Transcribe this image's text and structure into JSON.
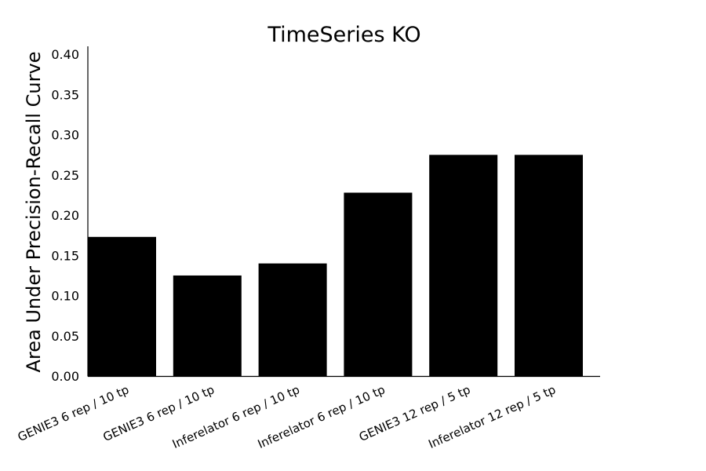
{
  "chart_data": {
    "type": "bar",
    "title": "TimeSeries KO",
    "xlabel": "",
    "ylabel": "Area Under Precision-Recall Curve",
    "categories": [
      "GENIE3 6 rep / 10 tp",
      "GENIE3 6 rep / 10 tp",
      "Inferelator 6 rep / 10 tp",
      "Inferelator 6 rep / 10 tp",
      "GENIE3 12 rep / 5 tp",
      "Inferelator 12 rep / 5 tp"
    ],
    "values": [
      0.173,
      0.125,
      0.14,
      0.228,
      0.275,
      0.275
    ],
    "ylim": [
      0,
      0.41
    ],
    "yticks": [
      "0.00",
      "0.05",
      "0.10",
      "0.15",
      "0.20",
      "0.25",
      "0.30",
      "0.35",
      "0.40"
    ],
    "grid": false,
    "bar_color": "#000000"
  }
}
